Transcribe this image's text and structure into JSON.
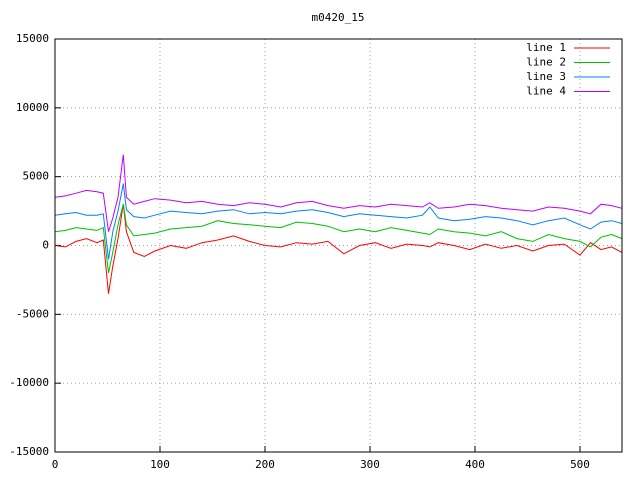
{
  "chart_data": {
    "type": "line",
    "title": "m0420_15",
    "x": [
      0,
      10,
      20,
      30,
      40,
      46,
      51,
      55,
      60,
      65,
      68,
      75,
      85,
      95,
      110,
      125,
      140,
      155,
      170,
      185,
      200,
      215,
      230,
      245,
      260,
      275,
      290,
      305,
      320,
      335,
      350,
      357,
      365,
      380,
      395,
      410,
      425,
      440,
      455,
      470,
      485,
      500,
      510,
      520,
      530,
      540
    ],
    "series": [
      {
        "name": "line 1",
        "color": "#ff0000",
        "values": [
          0,
          -100,
          300,
          500,
          200,
          400,
          -3500,
          -1500,
          500,
          3000,
          1000,
          -500,
          -800,
          -400,
          0,
          -200,
          200,
          400,
          700,
          300,
          0,
          -100,
          200,
          100,
          300,
          -600,
          0,
          200,
          -200,
          100,
          0,
          -100,
          200,
          0,
          -300,
          100,
          -200,
          0,
          -400,
          0,
          100,
          -700,
          200,
          -300,
          -100,
          -500
        ]
      },
      {
        "name": "line 2",
        "color": "#00c000",
        "values": [
          1000,
          1100,
          1300,
          1200,
          1100,
          1300,
          -2000,
          -500,
          1500,
          3000,
          1500,
          700,
          800,
          900,
          1200,
          1300,
          1400,
          1800,
          1600,
          1500,
          1400,
          1300,
          1700,
          1600,
          1400,
          1000,
          1200,
          1000,
          1300,
          1100,
          900,
          800,
          1200,
          1000,
          900,
          700,
          1000,
          500,
          300,
          800,
          500,
          300,
          -100,
          600,
          800,
          500
        ]
      },
      {
        "name": "line 3",
        "color": "#0080ff",
        "values": [
          2200,
          2300,
          2400,
          2200,
          2200,
          2300,
          -1000,
          1000,
          2500,
          4500,
          2600,
          2100,
          2000,
          2200,
          2500,
          2400,
          2300,
          2500,
          2600,
          2300,
          2400,
          2300,
          2500,
          2600,
          2400,
          2100,
          2300,
          2200,
          2100,
          2000,
          2200,
          2800,
          2000,
          1800,
          1900,
          2100,
          2000,
          1800,
          1500,
          1800,
          2000,
          1500,
          1200,
          1700,
          1800,
          1600
        ]
      },
      {
        "name": "line 4",
        "color": "#c000ff",
        "values": [
          3500,
          3600,
          3800,
          4000,
          3900,
          3800,
          1000,
          2000,
          3500,
          6600,
          3500,
          3000,
          3200,
          3400,
          3300,
          3100,
          3200,
          3000,
          2900,
          3100,
          3000,
          2800,
          3100,
          3200,
          2900,
          2700,
          2900,
          2800,
          3000,
          2900,
          2800,
          3100,
          2700,
          2800,
          3000,
          2900,
          2700,
          2600,
          2500,
          2800,
          2700,
          2500,
          2300,
          3000,
          2900,
          2700
        ]
      }
    ],
    "xlim": [
      0,
      540
    ],
    "ylim": [
      -15000,
      15000
    ],
    "xticks": [
      0,
      100,
      200,
      300,
      400,
      500
    ],
    "yticks": [
      -15000,
      -10000,
      -5000,
      0,
      5000,
      10000,
      15000
    ],
    "grid": true,
    "legend": "top-right"
  }
}
